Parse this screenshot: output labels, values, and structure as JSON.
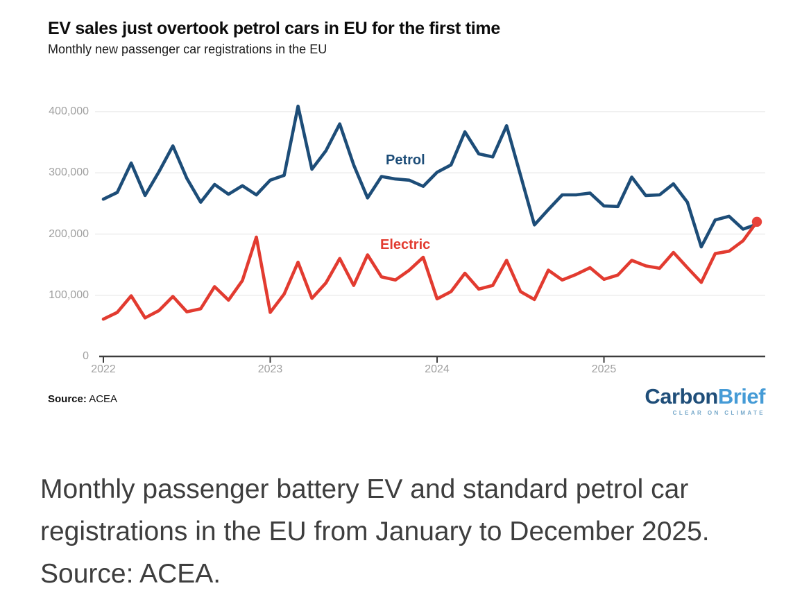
{
  "chart_data": {
    "type": "line",
    "title": "EV sales just overtook petrol cars in EU for the first time",
    "subtitle": "Monthly new passenger car registrations in the EU",
    "x_unit": "month",
    "x_start": "2022-01",
    "x_end": "2025-12",
    "points_per_series": 48,
    "grid": "horizontal-only",
    "legend_position": "inline-labels",
    "ylim": [
      0,
      400000
    ],
    "x_ticks": [
      {
        "label": "2022",
        "month_index": 0
      },
      {
        "label": "2023",
        "month_index": 12
      },
      {
        "label": "2024",
        "month_index": 24
      },
      {
        "label": "2025",
        "month_index": 36
      }
    ],
    "y_ticks": [
      {
        "value": 0,
        "label": "0"
      },
      {
        "value": 100000,
        "label": "100,000"
      },
      {
        "value": 200000,
        "label": "200,000"
      },
      {
        "value": 300000,
        "label": "300,000"
      },
      {
        "value": 400000,
        "label": "400,000"
      }
    ],
    "series": [
      {
        "name": "Petrol",
        "color": "#1d4d78",
        "end_dot": false,
        "values": [
          257000,
          268000,
          316000,
          263000,
          302000,
          344000,
          291000,
          252000,
          281000,
          265000,
          279000,
          264000,
          288000,
          296000,
          409000,
          306000,
          336000,
          380000,
          313000,
          259000,
          294000,
          290000,
          288000,
          278000,
          301000,
          313000,
          367000,
          331000,
          326000,
          377000,
          296000,
          215000,
          240000,
          264000,
          264000,
          267000,
          246000,
          245000,
          293000,
          263000,
          264000,
          282000,
          252000,
          179000,
          223000,
          229000,
          208000,
          216000
        ]
      },
      {
        "name": "Electric",
        "color": "#e23b30",
        "end_dot": true,
        "values": [
          61000,
          72000,
          99000,
          63000,
          75000,
          98000,
          73000,
          78000,
          114000,
          92000,
          124000,
          195000,
          72000,
          102000,
          154000,
          95000,
          120000,
          160000,
          116000,
          166000,
          130000,
          125000,
          141000,
          162000,
          94000,
          106000,
          136000,
          110000,
          116000,
          157000,
          106000,
          93000,
          141000,
          125000,
          134000,
          145000,
          126000,
          133000,
          157000,
          148000,
          144000,
          170000,
          145000,
          121000,
          168000,
          172000,
          189000,
          220000
        ]
      }
    ]
  },
  "footer": {
    "source_label": "Source:",
    "source_value": "ACEA",
    "logo": {
      "part1": "Carbon",
      "part2": "Brief",
      "tagline": "CLEAR ON CLIMATE",
      "part1_color": "#1f4e79",
      "part2_color": "#459bd6",
      "tagline_color": "#74a7c9"
    }
  },
  "caption": {
    "text": "Monthly passenger battery EV and standard petrol car registrations in the EU from January to December 2025. Source: ACEA."
  },
  "colors": {
    "petrol": "#1d4d78",
    "electric": "#e23b30",
    "end_dot": "#e8423a",
    "axis": "#3d3d3d",
    "gridline": "#e8e8e8",
    "tick_label": "#a0a0a0",
    "background": "#ffffff"
  }
}
